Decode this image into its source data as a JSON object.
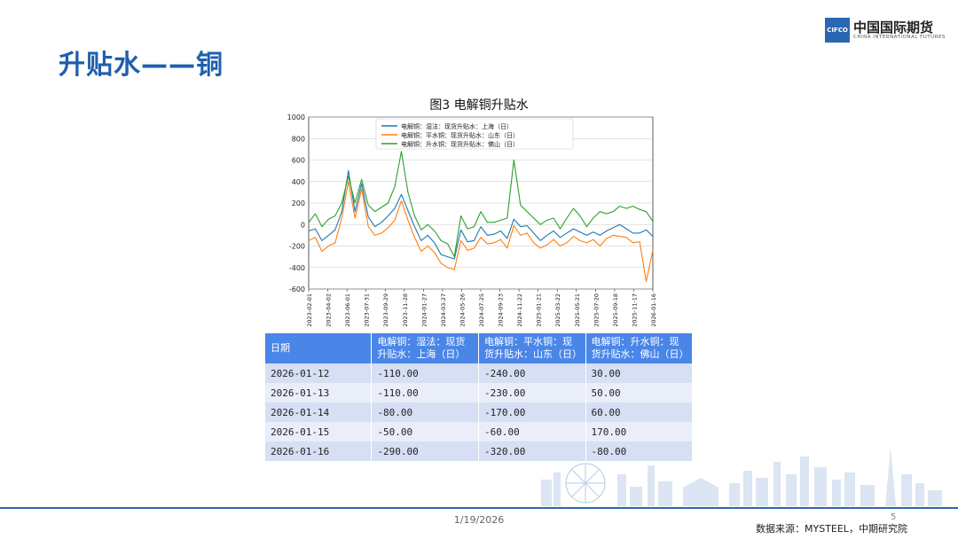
{
  "page": {
    "title": "升贴水——铜",
    "logo_mark": "CIFCO",
    "logo_cn": "中国国际期货",
    "logo_en": "CHINA INTERNATIONAL FUTURES",
    "date": "1/19/2026",
    "page_number": "5",
    "source": "数据来源：MYSTEEL，中期研究院"
  },
  "chart_data": {
    "type": "line",
    "title": "图3   电解铜升贴水",
    "xlabel": "",
    "ylabel": "",
    "ylim": [
      -600,
      1000
    ],
    "yticks": [
      1000,
      800,
      600,
      400,
      200,
      0,
      -200,
      -400,
      -600
    ],
    "grid": true,
    "legend_position": "top-center",
    "x_ticks": [
      "2023-02-01",
      "2023-04-02",
      "2023-06-01",
      "2023-07-31",
      "2023-09-29",
      "2023-11-28",
      "2024-01-27",
      "2024-03-27",
      "2024-05-26",
      "2024-07-25",
      "2024-09-23",
      "2024-11-22",
      "2025-01-21",
      "2025-03-22",
      "2025-05-21",
      "2025-07-20",
      "2025-09-18",
      "2025-11-17",
      "2026-01-16"
    ],
    "series": [
      {
        "name": "电解铜：湿法：现货升贴水：上海（日）",
        "color": "#1f77b4",
        "values": [
          -60,
          -40,
          -150,
          -100,
          -50,
          120,
          500,
          120,
          380,
          70,
          -20,
          20,
          80,
          150,
          280,
          130,
          -20,
          -150,
          -100,
          -170,
          -280,
          -300,
          -320,
          -50,
          -160,
          -150,
          -20,
          -100,
          -90,
          -60,
          -130,
          50,
          -20,
          -10,
          -80,
          -150,
          -100,
          -60,
          -120,
          -80,
          -40,
          -70,
          -100,
          -70,
          -100,
          -60,
          -30,
          0,
          -40,
          -80,
          -80,
          -50,
          -110
        ]
      },
      {
        "name": "电解铜：平水铜：现货升贴水：山东（日）",
        "color": "#ff7f0e",
        "values": [
          -150,
          -120,
          -250,
          -200,
          -170,
          60,
          400,
          60,
          330,
          -20,
          -100,
          -80,
          -30,
          40,
          220,
          40,
          -120,
          -250,
          -200,
          -260,
          -360,
          -400,
          -420,
          -150,
          -240,
          -220,
          -120,
          -180,
          -170,
          -140,
          -220,
          -10,
          -100,
          -80,
          -170,
          -220,
          -190,
          -140,
          -200,
          -170,
          -110,
          -150,
          -170,
          -140,
          -200,
          -130,
          -100,
          -110,
          -120,
          -170,
          -160,
          -530,
          -240
        ]
      },
      {
        "name": "电解铜：升水铜：现货升贴水：佛山（日）",
        "color": "#2ca02c",
        "values": [
          20,
          100,
          -20,
          50,
          80,
          200,
          450,
          200,
          420,
          180,
          120,
          160,
          200,
          350,
          680,
          300,
          80,
          -50,
          0,
          -60,
          -150,
          -180,
          -300,
          80,
          -40,
          -20,
          120,
          20,
          20,
          40,
          60,
          600,
          180,
          120,
          60,
          0,
          40,
          60,
          -40,
          60,
          150,
          80,
          -20,
          60,
          120,
          100,
          120,
          170,
          150,
          170,
          140,
          120,
          30
        ]
      }
    ],
    "table": {
      "headers": [
        "日期",
        "电解铜：湿法：现货升贴水：上海（日）",
        "电解铜：平水铜：现货升贴水：山东（日）",
        "电解铜：升水铜：现货升贴水：佛山（日）"
      ],
      "rows": [
        [
          "2026-01-12",
          "-110.00",
          "-240.00",
          "30.00"
        ],
        [
          "2026-01-13",
          "-110.00",
          "-230.00",
          "50.00"
        ],
        [
          "2026-01-14",
          "-80.00",
          "-170.00",
          "60.00"
        ],
        [
          "2026-01-15",
          "-50.00",
          "-60.00",
          "170.00"
        ],
        [
          "2026-01-16",
          "-290.00",
          "-320.00",
          "-80.00"
        ]
      ]
    }
  }
}
